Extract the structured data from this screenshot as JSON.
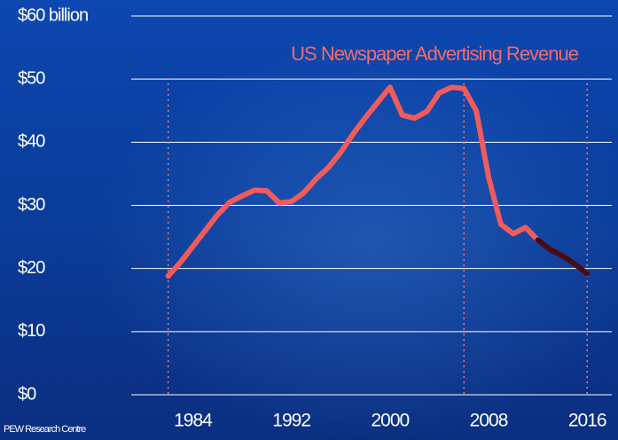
{
  "chart_data": {
    "type": "line",
    "title": "US Newspaper Advertising Revenue",
    "source": "PEW Research Centre",
    "x": [
      1982,
      1983,
      1984,
      1985,
      1986,
      1987,
      1988,
      1989,
      1990,
      1991,
      1992,
      1993,
      1994,
      1995,
      1996,
      1997,
      1998,
      1999,
      2000,
      2001,
      2002,
      2003,
      2004,
      2005,
      2006,
      2007,
      2008,
      2009,
      2010,
      2011,
      2012,
      2013,
      2014,
      2015,
      2016
    ],
    "series": [
      {
        "color": "#f25b5b",
        "values": [
          18.8,
          21,
          23.5,
          26,
          28.5,
          30.5,
          31.5,
          32.4,
          32.3,
          30.4,
          30.6,
          32,
          34.2,
          36,
          38.4,
          41.3,
          43.9,
          46.3,
          48.7,
          44.3,
          43.8,
          44.9,
          47.8,
          48.7,
          48.5,
          45,
          34.5,
          27,
          25.5,
          26.5,
          24.5,
          null,
          null,
          null,
          null
        ]
      },
      {
        "color": "#4a0b12",
        "values": [
          null,
          null,
          null,
          null,
          null,
          null,
          null,
          null,
          null,
          null,
          null,
          null,
          null,
          null,
          null,
          null,
          null,
          null,
          null,
          null,
          null,
          null,
          null,
          null,
          null,
          null,
          null,
          null,
          null,
          null,
          24.5,
          23,
          22,
          20.7,
          19.2
        ]
      }
    ],
    "xlim": [
      1979,
      2018
    ],
    "xticks": [
      1984,
      1992,
      2000,
      2008,
      2016
    ],
    "ylim": [
      0,
      60
    ],
    "yticks": [
      {
        "value": 0,
        "label": "$0"
      },
      {
        "value": 10,
        "label": "$10"
      },
      {
        "value": 20,
        "label": "$20"
      },
      {
        "value": 30,
        "label": "$30"
      },
      {
        "value": 40,
        "label": "$40"
      },
      {
        "value": 50,
        "label": "$50"
      },
      {
        "value": 60,
        "label": "$60 billion"
      }
    ],
    "reference_lines_x": [
      1982,
      2006,
      2016
    ],
    "grid": true
  }
}
